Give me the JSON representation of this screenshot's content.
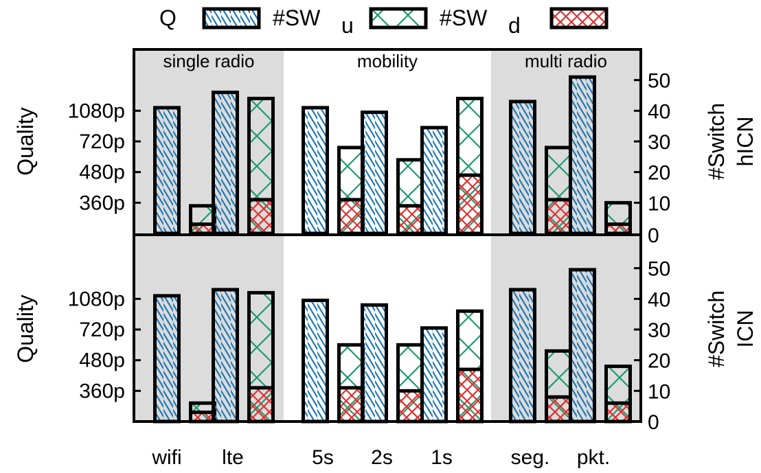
{
  "chart_data": {
    "type": "bar",
    "legend": {
      "placement": "top",
      "entries": [
        {
          "key": "q",
          "label": "Q",
          "pattern": "diag-blue"
        },
        {
          "key": "sw_u",
          "label": "#SW",
          "sub": "u",
          "pattern": "x-green"
        },
        {
          "key": "sw_d",
          "label": "#SW",
          "sub": "d",
          "pattern": "x-red"
        }
      ]
    },
    "groups": [
      {
        "label": "single radio",
        "shaded": true,
        "categories": [
          "wifi",
          "lte"
        ]
      },
      {
        "label": "mobility",
        "shaded": false,
        "categories": [
          "5s",
          "2s",
          "1s"
        ]
      },
      {
        "label": "multi radio",
        "shaded": true,
        "categories": [
          "seg.",
          "pkt."
        ]
      }
    ],
    "categories": [
      "wifi",
      "lte",
      "5s",
      "2s",
      "1s",
      "seg.",
      "pkt."
    ],
    "colors": {
      "q": "#1f77b4",
      "sw_u": "#1a9a6c",
      "sw_d": "#e03030",
      "shade": "#dcdcdc"
    },
    "left_axis": {
      "label": "Quality",
      "ticks": [
        "360p",
        "480p",
        "720p",
        "1080p"
      ],
      "ylim": [
        0,
        6
      ]
    },
    "right_axis": {
      "label": "#Switch",
      "ticks": [
        0,
        10,
        20,
        30,
        40,
        50
      ],
      "ylim": [
        0,
        60
      ]
    },
    "panels": [
      {
        "name": "hICN",
        "quality": [
          4.1,
          4.6,
          4.1,
          3.95,
          3.45,
          4.3,
          5.1
        ],
        "switch_up": [
          9,
          44,
          28,
          24,
          44,
          28,
          10
        ],
        "switch_down": [
          3,
          11,
          11,
          9,
          19,
          11,
          3
        ]
      },
      {
        "name": "ICN",
        "quality": [
          4.1,
          4.3,
          3.95,
          3.8,
          3.05,
          4.3,
          4.95
        ],
        "switch_up": [
          6,
          42,
          25,
          25,
          36,
          23,
          18
        ],
        "switch_down": [
          3,
          11,
          11,
          10,
          17,
          8,
          6
        ]
      }
    ]
  }
}
